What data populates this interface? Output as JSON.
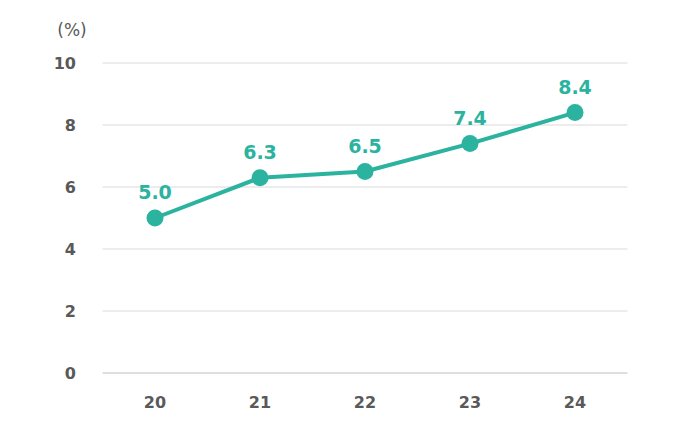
{
  "chart_data": {
    "type": "line",
    "y_label": "(%)",
    "categories": [
      "20",
      "21",
      "22",
      "23",
      "24"
    ],
    "values": [
      5.0,
      6.3,
      6.5,
      7.4,
      8.4
    ],
    "value_labels": [
      "5.0",
      "6.3",
      "6.5",
      "7.4",
      "8.4"
    ],
    "color": "#2bb3a0",
    "ylim": [
      0,
      10
    ],
    "yticks": [
      0,
      2,
      4,
      6,
      8,
      10
    ],
    "grid": true,
    "data_labels": true,
    "marker": "circle"
  }
}
